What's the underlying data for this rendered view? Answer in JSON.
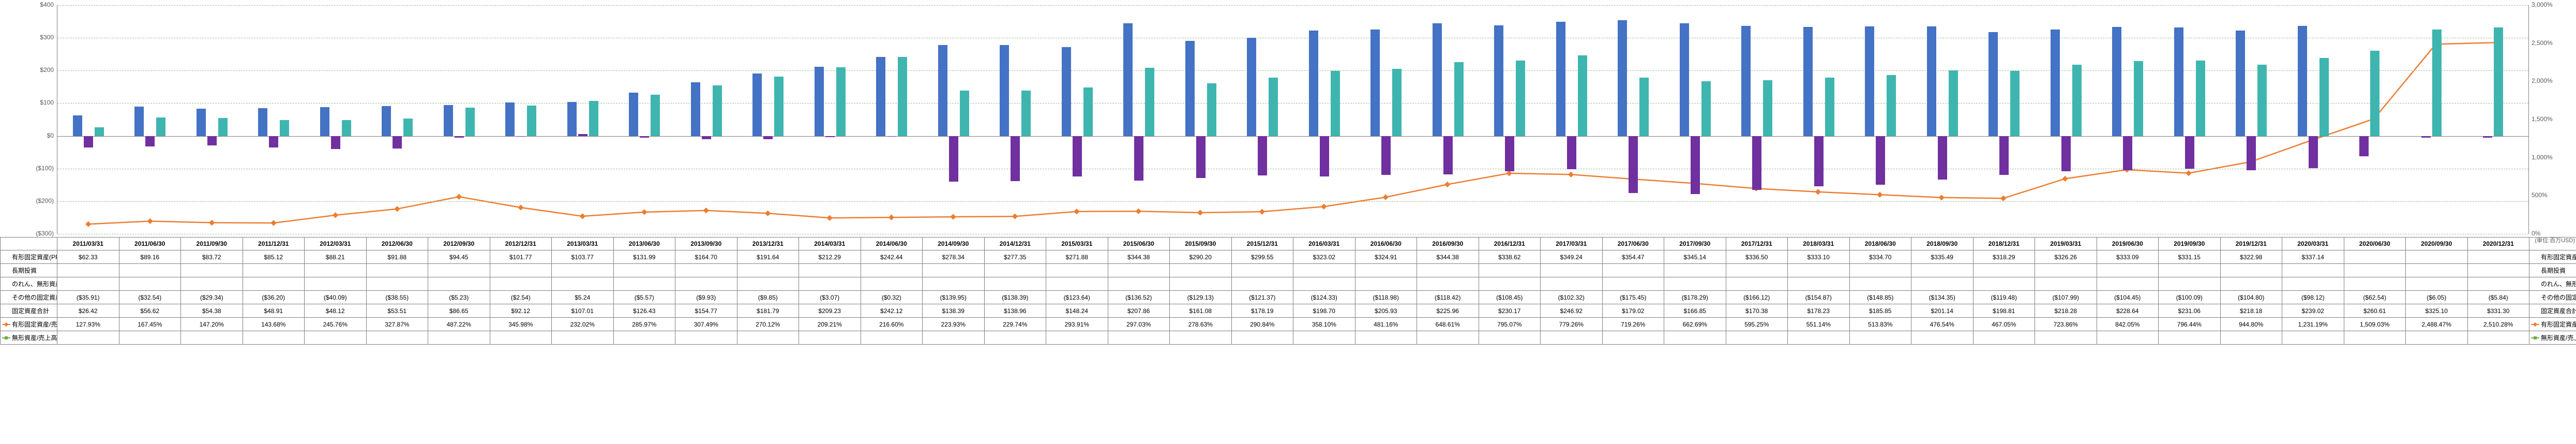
{
  "chart": {
    "type": "bar+line",
    "background_color": "#ffffff",
    "grid_color": "#a0c090",
    "axis_color": "#808080",
    "text_color": "#595959",
    "unit_label": "(単位:百万USD)",
    "y_left": {
      "min": -300,
      "max": 400,
      "step": 100,
      "format": "currency",
      "labels": [
        "($300)",
        "($200)",
        "($100)",
        "$0",
        "$100",
        "$200",
        "$300",
        "$400"
      ]
    },
    "y_right": {
      "min": 0,
      "max": 3000,
      "step": 500,
      "format": "percent",
      "labels": [
        "0%",
        "500%",
        "1,000%",
        "1,500%",
        "2,000%",
        "2,500%",
        "3,000%"
      ]
    },
    "periods": [
      "2011/03/31",
      "2011/06/30",
      "2011/09/30",
      "2011/12/31",
      "2012/03/31",
      "2012/06/30",
      "2012/09/30",
      "2012/12/31",
      "2013/03/31",
      "2013/06/30",
      "2013/09/30",
      "2013/12/31",
      "2014/03/31",
      "2014/06/30",
      "2014/09/30",
      "2014/12/31",
      "2015/03/31",
      "2015/06/30",
      "2015/09/30",
      "2015/12/31",
      "2016/03/31",
      "2016/06/30",
      "2016/09/30",
      "2016/12/31",
      "2017/03/31",
      "2017/06/30",
      "2017/09/30",
      "2017/12/31",
      "2018/03/31",
      "2018/06/30",
      "2018/09/30",
      "2018/12/31",
      "2019/03/31",
      "2019/06/30",
      "2019/09/30",
      "2019/12/31",
      "2020/03/31",
      "2020/06/30",
      "2020/09/30",
      "2020/12/31"
    ],
    "series": [
      {
        "id": "ppe",
        "label": "有形固定資産(PP&E)",
        "type": "bar",
        "color": "#4472c4",
        "axis": "left",
        "values": [
          62.33,
          89.16,
          83.72,
          85.12,
          88.21,
          91.88,
          94.45,
          101.77,
          103.77,
          131.99,
          164.7,
          191.64,
          212.29,
          242.44,
          278.34,
          277.35,
          271.88,
          344.38,
          290.2,
          299.55,
          323.02,
          324.91,
          344.38,
          338.62,
          349.24,
          354.47,
          345.14,
          336.5,
          333.1,
          334.7,
          335.49,
          318.29,
          326.26,
          333.09,
          331.15,
          322.98,
          337.14,
          null,
          null,
          null
        ]
      },
      {
        "id": "lti",
        "label": "長期投資",
        "type": "bar",
        "color": "#ed7d31",
        "axis": "left",
        "values": [
          null,
          null,
          null,
          null,
          null,
          null,
          null,
          null,
          null,
          null,
          null,
          null,
          null,
          null,
          null,
          null,
          null,
          null,
          null,
          null,
          null,
          null,
          null,
          null,
          null,
          null,
          null,
          null,
          null,
          null,
          null,
          null,
          null,
          null,
          null,
          null,
          null,
          null,
          null,
          null
        ]
      },
      {
        "id": "goodwill",
        "label": "のれん、無形資産",
        "type": "bar",
        "color": "#a5a5a5",
        "axis": "left",
        "values": [
          null,
          null,
          null,
          null,
          null,
          null,
          null,
          null,
          null,
          null,
          null,
          null,
          null,
          null,
          null,
          null,
          null,
          null,
          null,
          null,
          null,
          null,
          null,
          null,
          null,
          null,
          null,
          null,
          null,
          null,
          null,
          null,
          null,
          null,
          null,
          null,
          null,
          null,
          null,
          null
        ]
      },
      {
        "id": "other",
        "label": "その他の固定資産",
        "type": "bar",
        "color": "#7030a0",
        "axis": "left",
        "values": [
          -35.91,
          -32.54,
          -29.34,
          -36.2,
          -40.09,
          -38.55,
          -5.23,
          -2.54,
          5.24,
          -5.57,
          -9.93,
          -9.85,
          -3.07,
          -0.32,
          -139.95,
          -138.39,
          -123.64,
          -136.52,
          -129.13,
          -121.37,
          -124.33,
          -118.98,
          -118.42,
          -108.45,
          -102.32,
          -175.45,
          -178.29,
          -166.12,
          -154.87,
          -148.85,
          -134.35,
          -119.48,
          -107.99,
          -104.45,
          -100.09,
          -104.8,
          -98.12,
          -62.54,
          -6.05,
          -5.84
        ]
      },
      {
        "id": "total",
        "label": "固定資産合計",
        "type": "bar",
        "color": "#3fb5b0",
        "axis": "left",
        "values": [
          26.42,
          56.62,
          54.38,
          48.91,
          48.12,
          53.51,
          86.65,
          92.12,
          107.01,
          126.43,
          154.77,
          181.79,
          209.23,
          242.12,
          138.39,
          138.96,
          148.24,
          207.86,
          161.08,
          178.19,
          198.7,
          205.93,
          225.96,
          230.17,
          246.92,
          179.02,
          166.85,
          170.38,
          178.23,
          185.85,
          201.14,
          198.81,
          218.28,
          228.64,
          231.06,
          218.18,
          239.02,
          260.61,
          325.1,
          331.3
        ]
      },
      {
        "id": "ppe_ratio",
        "label": "有形固定資産/売上高",
        "type": "line",
        "color": "#ed7d31",
        "marker": "diamond",
        "axis": "right",
        "values": [
          127.93,
          167.45,
          147.2,
          143.68,
          245.76,
          327.87,
          487.22,
          345.98,
          232.02,
          285.97,
          307.49,
          270.12,
          209.21,
          216.6,
          223.93,
          229.74,
          293.91,
          297.03,
          278.63,
          290.84,
          358.1,
          481.16,
          648.61,
          795.07,
          779.26,
          719.26,
          662.69,
          595.25,
          551.14,
          513.83,
          476.54,
          467.05,
          723.86,
          842.05,
          796.44,
          944.8,
          1231.19,
          1509.03,
          2488.47,
          2510.28
        ]
      },
      {
        "id": "int_ratio",
        "label": "無形資産/売上高",
        "type": "line",
        "color": "#70ad47",
        "marker": "square",
        "axis": "right",
        "values": [
          null,
          null,
          null,
          null,
          null,
          null,
          null,
          null,
          null,
          null,
          null,
          null,
          null,
          null,
          null,
          null,
          null,
          null,
          null,
          null,
          null,
          null,
          null,
          null,
          null,
          null,
          null,
          null,
          null,
          null,
          null,
          null,
          null,
          null,
          null,
          null,
          null,
          null,
          null,
          null
        ]
      }
    ]
  },
  "table": {
    "row_labels": [
      "有形固定資産(PP&E)",
      "長期投資",
      "のれん、無形資産",
      "その他の固定資産",
      "固定資産合計",
      "有形固定資産/売上高",
      "無形資産/売上高"
    ],
    "right_labels": [
      "有形固定資産(PP&E)",
      "長期投資",
      "のれん、無形資産",
      "その他の固定資産",
      "固定資産合計",
      "有形固定資産/売上高",
      "無形資産/売上高"
    ],
    "rows": {
      "ppe": [
        "$62.33",
        "$89.16",
        "$83.72",
        "$85.12",
        "$88.21",
        "$91.88",
        "$94.45",
        "$101.77",
        "$103.77",
        "$131.99",
        "$164.70",
        "$191.64",
        "$212.29",
        "$242.44",
        "$278.34",
        "$277.35",
        "$271.88",
        "$344.38",
        "$290.20",
        "$299.55",
        "$323.02",
        "$324.91",
        "$344.38",
        "$338.62",
        "$349.24",
        "$354.47",
        "$345.14",
        "$336.50",
        "$333.10",
        "$334.70",
        "$335.49",
        "$318.29",
        "$326.26",
        "$333.09",
        "$331.15",
        "$322.98",
        "$337.14",
        "",
        "",
        ""
      ],
      "lti": [
        "",
        "",
        "",
        "",
        "",
        "",
        "",
        "",
        "",
        "",
        "",
        "",
        "",
        "",
        "",
        "",
        "",
        "",
        "",
        "",
        "",
        "",
        "",
        "",
        "",
        "",
        "",
        "",
        "",
        "",
        "",
        "",
        "",
        "",
        "",
        "",
        "",
        "",
        "",
        ""
      ],
      "goodwill": [
        "",
        "",
        "",
        "",
        "",
        "",
        "",
        "",
        "",
        "",
        "",
        "",
        "",
        "",
        "",
        "",
        "",
        "",
        "",
        "",
        "",
        "",
        "",
        "",
        "",
        "",
        "",
        "",
        "",
        "",
        "",
        "",
        "",
        "",
        "",
        "",
        "",
        "",
        "",
        ""
      ],
      "other": [
        "($35.91)",
        "($32.54)",
        "($29.34)",
        "($36.20)",
        "($40.09)",
        "($38.55)",
        "($5.23)",
        "($2.54)",
        "$5.24",
        "($5.57)",
        "($9.93)",
        "($9.85)",
        "($3.07)",
        "($0.32)",
        "($139.95)",
        "($138.39)",
        "($123.64)",
        "($136.52)",
        "($129.13)",
        "($121.37)",
        "($124.33)",
        "($118.98)",
        "($118.42)",
        "($108.45)",
        "($102.32)",
        "($175.45)",
        "($178.29)",
        "($166.12)",
        "($154.87)",
        "($148.85)",
        "($134.35)",
        "($119.48)",
        "($107.99)",
        "($104.45)",
        "($100.09)",
        "($104.80)",
        "($98.12)",
        "($62.54)",
        "($6.05)",
        "($5.84)"
      ],
      "total": [
        "$26.42",
        "$56.62",
        "$54.38",
        "$48.91",
        "$48.12",
        "$53.51",
        "$86.65",
        "$92.12",
        "$107.01",
        "$126.43",
        "$154.77",
        "$181.79",
        "$209.23",
        "$242.12",
        "$138.39",
        "$138.96",
        "$148.24",
        "$207.86",
        "$161.08",
        "$178.19",
        "$198.70",
        "$205.93",
        "$225.96",
        "$230.17",
        "$246.92",
        "$179.02",
        "$166.85",
        "$170.38",
        "$178.23",
        "$185.85",
        "$201.14",
        "$198.81",
        "$218.28",
        "$228.64",
        "$231.06",
        "$218.18",
        "$239.02",
        "$260.61",
        "$325.10",
        "$331.30"
      ],
      "ppe_ratio": [
        "127.93%",
        "167.45%",
        "147.20%",
        "143.68%",
        "245.76%",
        "327.87%",
        "487.22%",
        "345.98%",
        "232.02%",
        "285.97%",
        "307.49%",
        "270.12%",
        "209.21%",
        "216.60%",
        "223.93%",
        "229.74%",
        "293.91%",
        "297.03%",
        "278.63%",
        "290.84%",
        "358.10%",
        "481.16%",
        "648.61%",
        "795.07%",
        "779.26%",
        "719.26%",
        "662.69%",
        "595.25%",
        "551.14%",
        "513.83%",
        "476.54%",
        "467.05%",
        "723.86%",
        "842.05%",
        "796.44%",
        "944.80%",
        "1,231.19%",
        "1,509.03%",
        "2,488.47%",
        "2,510.28%"
      ],
      "int_ratio": [
        "",
        "",
        "",
        "",
        "",
        "",
        "",
        "",
        "",
        "",
        "",
        "",
        "",
        "",
        "",
        "",
        "",
        "",
        "",
        "",
        "",
        "",
        "",
        "",
        "",
        "",
        "",
        "",
        "",
        "",
        "",
        "",
        "",
        "",
        "",
        "",
        "",
        "",
        "",
        ""
      ]
    }
  }
}
